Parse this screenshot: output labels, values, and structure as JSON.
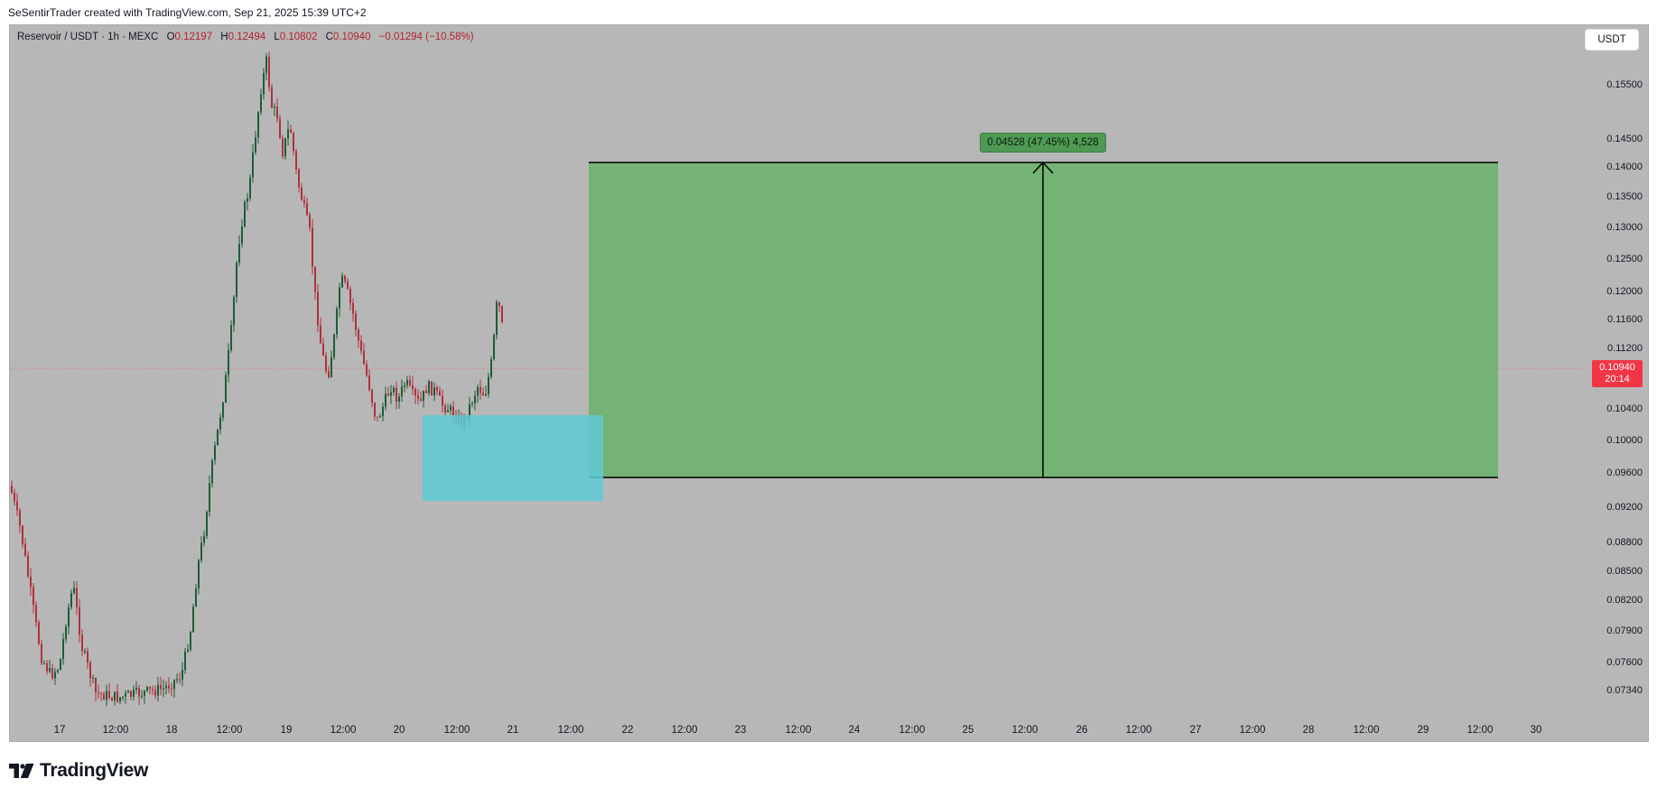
{
  "header": {
    "attribution": "SeSentirTrader created with TradingView.com, Sep 21, 2025 15:39 UTC+2"
  },
  "legend": {
    "symbol": "Reservoir / USDT · 1h · MEXC",
    "open_key": "O",
    "open": "0.12197",
    "high_key": "H",
    "high": "0.12494",
    "low_key": "L",
    "low": "0.10802",
    "close_key": "C",
    "close": "0.10940",
    "change": "−0.01294 (−10.58%)"
  },
  "currency_button": {
    "label": "USDT"
  },
  "price_axis": {
    "ticks": [
      "0.15500",
      "0.14500",
      "0.14000",
      "0.13500",
      "0.13000",
      "0.12500",
      "0.12000",
      "0.11600",
      "0.11200",
      "0.10400",
      "0.10000",
      "0.09600",
      "0.09200",
      "0.08800",
      "0.08500",
      "0.08200",
      "0.07900",
      "0.07600",
      "0.07340"
    ],
    "last_price": "0.10940",
    "countdown": "20:14"
  },
  "time_axis": {
    "ticks": [
      "17",
      "12:00",
      "18",
      "12:00",
      "19",
      "12:00",
      "20",
      "12:00",
      "21",
      "12:00",
      "22",
      "12:00",
      "23",
      "12:00",
      "24",
      "12:00",
      "25",
      "12:00",
      "26",
      "12:00",
      "27",
      "12:00",
      "28",
      "12:00",
      "29",
      "12:00",
      "30"
    ]
  },
  "measure_tool": {
    "label": "0.04528 (47.45%) 4,528"
  },
  "colors": {
    "background": "#b7b7b7",
    "up_candle": "#1e5d37",
    "down_candle": "#b0313d",
    "target_zone": "#74b373",
    "entry_zone": "#5ecbd6",
    "last_price": "#f23645"
  },
  "brand": {
    "logo_icon": "tradingview-logo-icon",
    "name": "TradingView"
  }
}
